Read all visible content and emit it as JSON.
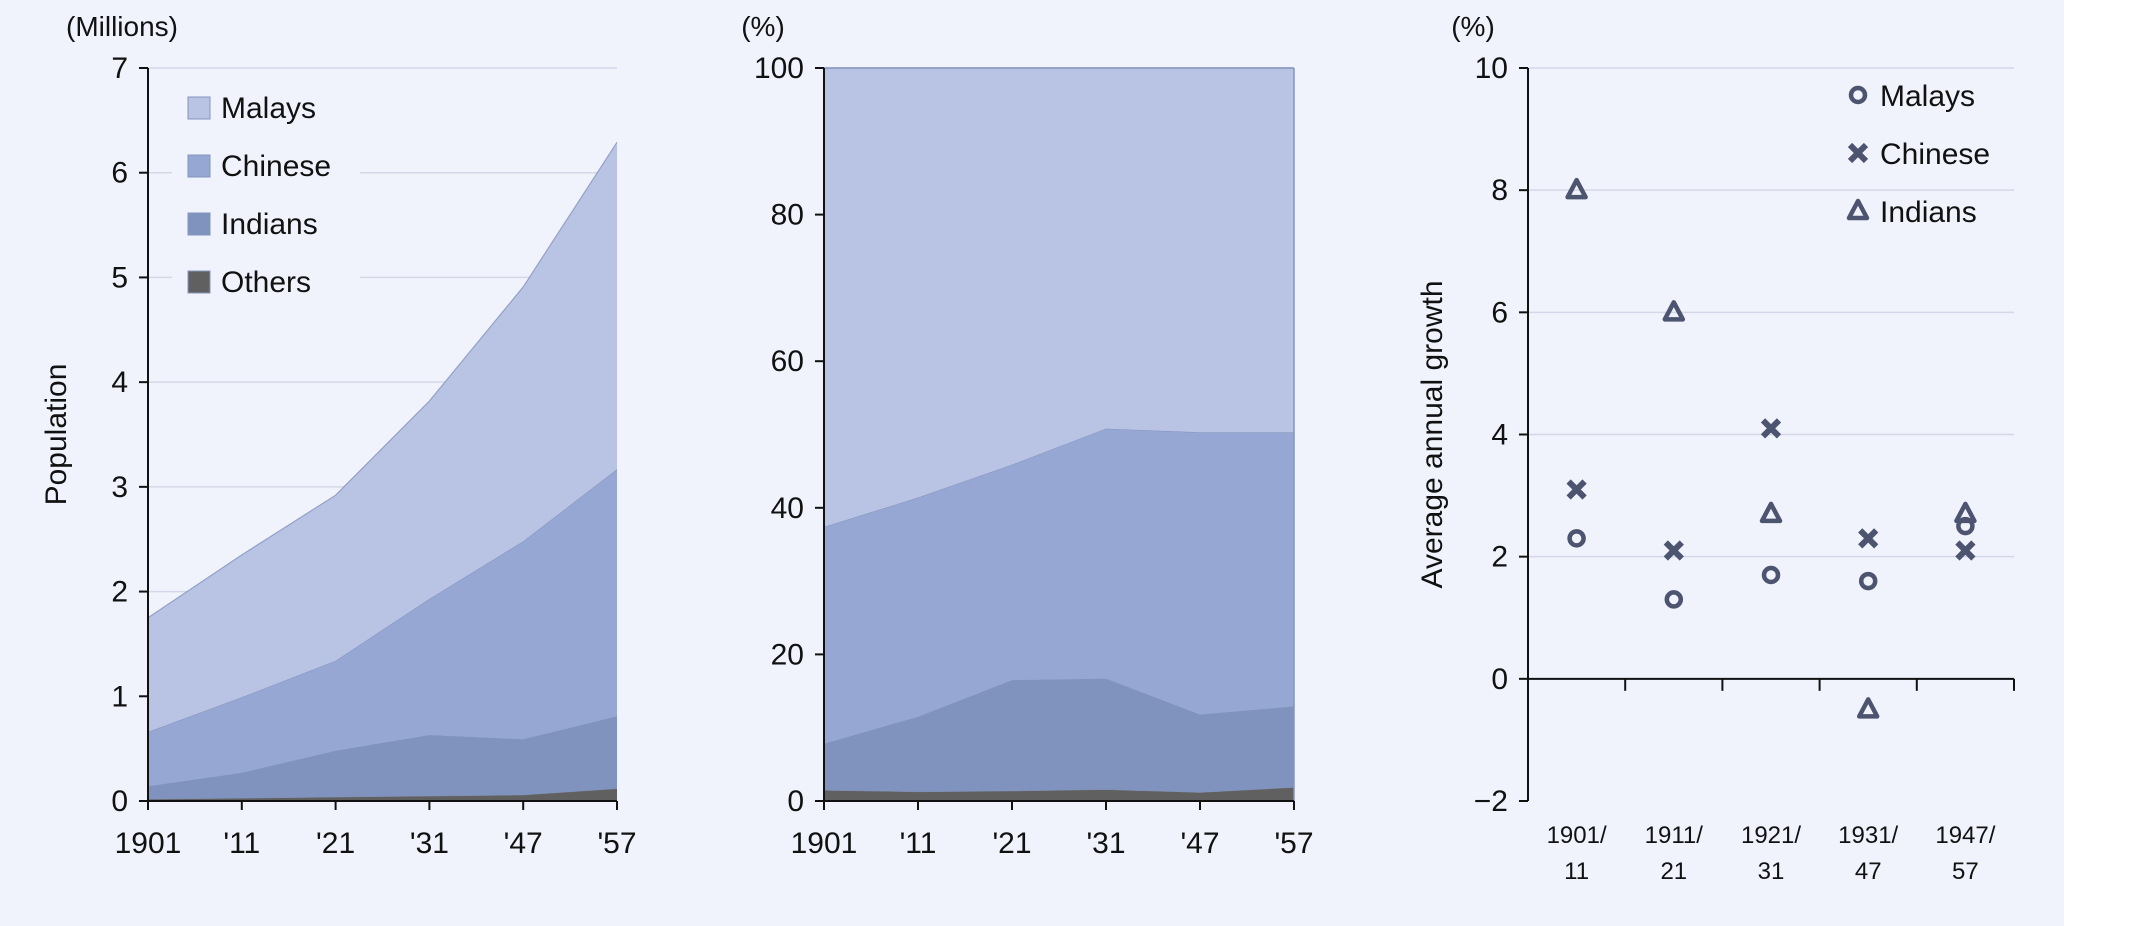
{
  "colors": {
    "background": "#f0f3fc",
    "malays": "#b9c3e4",
    "chinese": "#95a7d2",
    "indians": "#7f93be",
    "others": "#606060",
    "marker": "#4c5470",
    "grid": "#d4d8e6",
    "axis": "#111111"
  },
  "chart_data": [
    {
      "type": "area",
      "stacked": true,
      "unit_label": "(Millions)",
      "ylabel": "Population",
      "xlabel": "",
      "categories": [
        "1901",
        "'11",
        "'21",
        "'31",
        "'47",
        "'57"
      ],
      "ylim": [
        0,
        7
      ],
      "yticks": [
        0,
        1,
        2,
        3,
        4,
        5,
        6,
        7
      ],
      "grid": "horizontal",
      "legend": {
        "position": "top-left",
        "order": [
          "Malays",
          "Chinese",
          "Indians",
          "Others"
        ]
      },
      "series": [
        {
          "name": "Others",
          "values": [
            0.02,
            0.03,
            0.04,
            0.05,
            0.06,
            0.12
          ]
        },
        {
          "name": "Indians",
          "values": [
            0.12,
            0.24,
            0.44,
            0.58,
            0.53,
            0.69
          ]
        },
        {
          "name": "Chinese",
          "values": [
            0.52,
            0.72,
            0.86,
            1.3,
            1.89,
            2.36
          ]
        },
        {
          "name": "Malays",
          "values": [
            1.09,
            1.36,
            1.58,
            1.89,
            2.43,
            3.12
          ]
        }
      ]
    },
    {
      "type": "area",
      "stacked": true,
      "unit_label": "(%)",
      "ylabel": "",
      "xlabel": "",
      "categories": [
        "1901",
        "'11",
        "'21",
        "'31",
        "'47",
        "'57"
      ],
      "ylim": [
        0,
        100
      ],
      "yticks": [
        0,
        20,
        40,
        60,
        80,
        100
      ],
      "grid": "none",
      "series": [
        {
          "name": "Others",
          "values": [
            1.5,
            1.3,
            1.4,
            1.6,
            1.2,
            1.9
          ]
        },
        {
          "name": "Indians",
          "values": [
            6.3,
            10.2,
            15.1,
            15.1,
            10.6,
            11.0
          ]
        },
        {
          "name": "Chinese",
          "values": [
            29.6,
            29.9,
            29.4,
            34.1,
            38.5,
            37.4
          ]
        },
        {
          "name": "Malays",
          "values": [
            62.6,
            58.6,
            54.1,
            49.2,
            49.7,
            49.7
          ]
        }
      ]
    },
    {
      "type": "scatter",
      "unit_label": "(%)",
      "ylabel": "Average annual growth",
      "xlabel": "",
      "categories": [
        [
          "1901/",
          "11"
        ],
        [
          "1911/",
          "21"
        ],
        [
          "1921/",
          "31"
        ],
        [
          "1931/",
          "47"
        ],
        [
          "1947/",
          "57"
        ]
      ],
      "ylim": [
        -2,
        10
      ],
      "yticks": [
        -2,
        0,
        2,
        4,
        6,
        8,
        10
      ],
      "grid": "horizontal",
      "legend": {
        "position": "top-right"
      },
      "series": [
        {
          "name": "Malays",
          "marker": "circle",
          "values": [
            2.3,
            1.3,
            1.7,
            1.6,
            2.5
          ]
        },
        {
          "name": "Chinese",
          "marker": "x",
          "values": [
            3.1,
            2.1,
            4.1,
            2.3,
            2.1
          ]
        },
        {
          "name": "Indians",
          "marker": "triangle",
          "values": [
            8.0,
            6.0,
            2.7,
            -0.5,
            2.7
          ]
        }
      ]
    }
  ]
}
